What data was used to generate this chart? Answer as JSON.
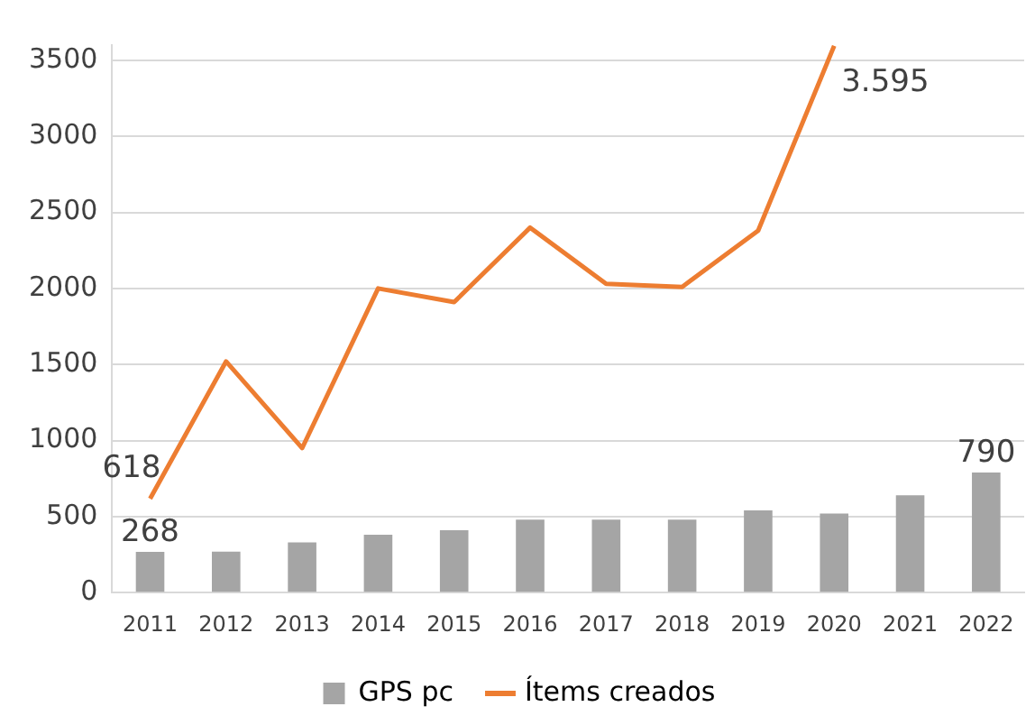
{
  "chart_data": {
    "type": "bar",
    "categories": [
      "2011",
      "2012",
      "2013",
      "2014",
      "2015",
      "2016",
      "2017",
      "2018",
      "2019",
      "2020",
      "2021",
      "2022"
    ],
    "series": [
      {
        "name": "GPS pc",
        "color": "#a5a5a5",
        "values": [
          268,
          270,
          330,
          380,
          410,
          480,
          480,
          480,
          540,
          520,
          640,
          790
        ],
        "value_labels": [
          "268",
          null,
          null,
          null,
          null,
          null,
          null,
          null,
          null,
          null,
          null,
          "790"
        ]
      },
      {
        "name": "Ítems creados",
        "type": "line",
        "color": "#ed7d31",
        "values": [
          618,
          1520,
          950,
          2000,
          1910,
          2400,
          2030,
          2010,
          2380,
          3595,
          null,
          null
        ],
        "value_labels": [
          "618",
          null,
          null,
          null,
          null,
          null,
          null,
          null,
          null,
          "3.595",
          null,
          null
        ]
      }
    ],
    "ylim": [
      0,
      3600
    ],
    "yticks": [
      0,
      500,
      1000,
      1500,
      2000,
      2500,
      3000,
      3500
    ],
    "grid": "y",
    "legend": "bottom",
    "marker": "none"
  }
}
